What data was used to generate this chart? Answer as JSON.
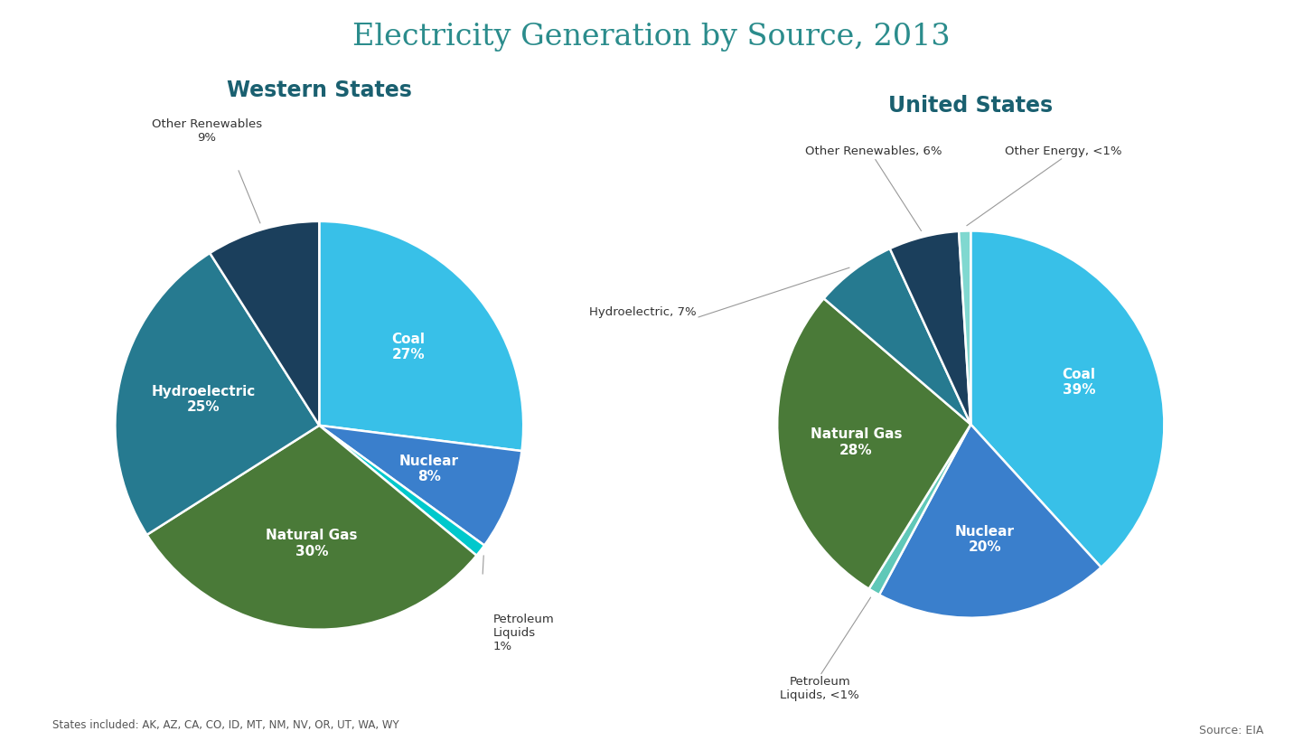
{
  "title": "Electricity Generation by Source, 2013",
  "title_color": "#2B8C8C",
  "background_color": "#FFFFFF",
  "western": {
    "subtitle": "Western States",
    "subtitle_color": "#1A6070",
    "labels": [
      "Coal",
      "Nuclear",
      "Petroleum\nLiquids",
      "Natural Gas",
      "Hydroelectric",
      "Other Renewables"
    ],
    "values": [
      27,
      8,
      1,
      30,
      25,
      9
    ],
    "colors": [
      "#38C0E8",
      "#3A7FCC",
      "#00C8CC",
      "#4A7A38",
      "#267A90",
      "#1B3F5C"
    ],
    "inside_labels": [
      "Coal\n27%",
      "Nuclear\n8%",
      "",
      "Natural Gas\n30%",
      "Hydroelectric\n25%",
      ""
    ],
    "outside_labels": [
      "",
      "",
      "Petroleum\nLiquids\n1%",
      "",
      "",
      "Other Renewables\n9%"
    ],
    "note": "States included: AK, AZ, CA, CO, ID, MT, NM, NV, OR, UT, WA, WY"
  },
  "us": {
    "subtitle": "United States",
    "subtitle_color": "#1A6070",
    "labels": [
      "Coal",
      "Nuclear",
      "Petroleum\nLiquids",
      "Natural Gas",
      "Hydroelectric",
      "Other Renewables",
      "Other Energy"
    ],
    "values": [
      39,
      20,
      1,
      28,
      7,
      6,
      1
    ],
    "colors": [
      "#38C0E8",
      "#3A7FCC",
      "#60C8B8",
      "#4A7A38",
      "#267A90",
      "#1B3F5C",
      "#80D8D0"
    ],
    "inside_labels": [
      "Coal\n39%",
      "Nuclear\n20%",
      "",
      "Natural Gas\n28%",
      "",
      "",
      ""
    ],
    "outside_labels": [
      "",
      "",
      "Petroleum\nLiquids, <1%",
      "",
      "Hydroelectric, 7%",
      "Other Renewables, 6%",
      "Other Energy, <1%"
    ]
  },
  "source_text": "Source: EIA"
}
